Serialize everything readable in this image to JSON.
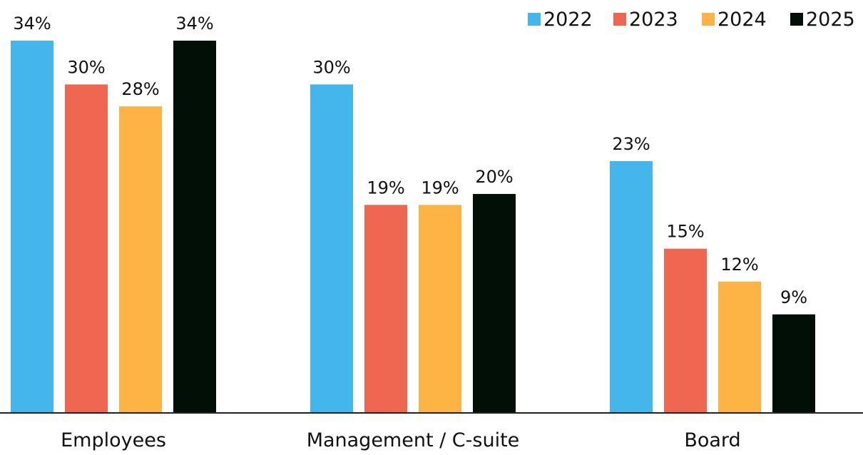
{
  "colors": {
    "2022": "#45b6ec",
    "2023": "#ef6751",
    "2024": "#fdb444",
    "2025": "#020f07",
    "axis": "#222222",
    "text": "#111111"
  },
  "chart_data": {
    "type": "bar",
    "title": "",
    "xlabel": "",
    "ylabel": "",
    "ylim": [
      0,
      34
    ],
    "grid": false,
    "legend_position": "top-right",
    "value_suffix": "%",
    "categories": [
      "Employees",
      "Management / C-suite",
      "Board"
    ],
    "series": [
      {
        "name": "2022",
        "values": [
          34,
          30,
          23
        ]
      },
      {
        "name": "2023",
        "values": [
          30,
          19,
          15
        ]
      },
      {
        "name": "2024",
        "values": [
          28,
          19,
          12
        ]
      },
      {
        "name": "2025",
        "values": [
          34,
          20,
          9
        ]
      }
    ]
  }
}
